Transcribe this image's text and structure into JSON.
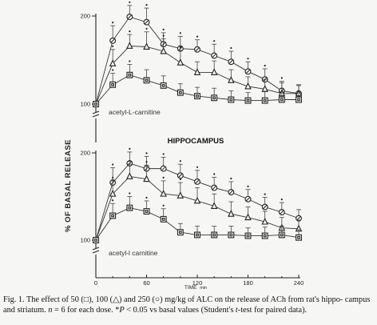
{
  "chart_data": [
    {
      "type": "line",
      "title": "",
      "annotation": "acetyl-L-carnitine",
      "x": [
        0,
        20,
        40,
        60,
        80,
        100,
        120,
        140,
        160,
        180,
        200,
        220,
        240
      ],
      "ylim": [
        95,
        200
      ],
      "series": [
        {
          "marker": "circle",
          "values": [
            100,
            172,
            199,
            193,
            168,
            163,
            162,
            155,
            148,
            137,
            128,
            115,
            112
          ],
          "errors": [
            0,
            17,
            13,
            16,
            13,
            14,
            11,
            13,
            12,
            11,
            12,
            11,
            10
          ],
          "significant": [
            false,
            true,
            true,
            true,
            true,
            true,
            true,
            true,
            true,
            true,
            true,
            true,
            false
          ]
        },
        {
          "marker": "triangle",
          "values": [
            100,
            146,
            166,
            165,
            160,
            147,
            136,
            136,
            127,
            120,
            117,
            112,
            112
          ],
          "errors": [
            0,
            16,
            13,
            17,
            14,
            14,
            12,
            13,
            12,
            11,
            11,
            12,
            9
          ],
          "significant": [
            false,
            true,
            true,
            true,
            true,
            true,
            false,
            false,
            false,
            false,
            false,
            false,
            false
          ]
        },
        {
          "marker": "square",
          "values": [
            100,
            122,
            133,
            127,
            121,
            113,
            109,
            107,
            105,
            104,
            104,
            105,
            105
          ],
          "errors": [
            0,
            13,
            12,
            12,
            11,
            10,
            10,
            11,
            10,
            9,
            10,
            9,
            9
          ],
          "significant": [
            false,
            true,
            true,
            false,
            false,
            false,
            false,
            false,
            false,
            false,
            false,
            false,
            false
          ]
        }
      ]
    },
    {
      "type": "line",
      "title": "HIPPOCAMPUS",
      "annotation": "acetyl-l carnitine",
      "x": [
        0,
        20,
        40,
        60,
        80,
        100,
        120,
        140,
        160,
        180,
        200,
        220,
        240
      ],
      "ylim": [
        95,
        200
      ],
      "series": [
        {
          "marker": "circle",
          "values": [
            100,
            166,
            188,
            182,
            182,
            174,
            167,
            160,
            155,
            147,
            138,
            132,
            125
          ],
          "errors": [
            0,
            17,
            13,
            14,
            13,
            13,
            13,
            12,
            12,
            11,
            11,
            11,
            10
          ],
          "significant": [
            false,
            true,
            true,
            true,
            true,
            true,
            true,
            true,
            true,
            true,
            true,
            true,
            false
          ]
        },
        {
          "marker": "triangle",
          "values": [
            100,
            153,
            173,
            170,
            153,
            151,
            145,
            139,
            130,
            126,
            121,
            114,
            113
          ],
          "errors": [
            0,
            15,
            14,
            16,
            15,
            15,
            15,
            14,
            14,
            12,
            12,
            12,
            10
          ],
          "significant": [
            false,
            true,
            true,
            true,
            true,
            true,
            false,
            false,
            false,
            false,
            false,
            false,
            false
          ]
        },
        {
          "marker": "square",
          "values": [
            100,
            128,
            137,
            133,
            124,
            109,
            106,
            106,
            106,
            105,
            105,
            106,
            103
          ],
          "errors": [
            0,
            14,
            13,
            12,
            12,
            10,
            10,
            10,
            10,
            9,
            10,
            10,
            9
          ],
          "significant": [
            false,
            true,
            true,
            true,
            true,
            false,
            false,
            false,
            false,
            false,
            false,
            false,
            false
          ]
        }
      ]
    }
  ],
  "y_axis_title": "% OF BASAL RELEASE",
  "x_axis_title": "TIME",
  "x_axis_unit": "min",
  "x_ticks": [
    "0",
    "60",
    "120",
    "180",
    "240"
  ],
  "caption": {
    "part1": "Fig. 1. The effect of 50 (□), 100 (△) and 250 (○) mg/kg of ALC on the release of ACh from rat's hippo-",
    "part2": "campus and striatum.",
    "n": "n",
    "part3": "= 6 for each dose. *",
    "p": "P",
    "part4": "< 0.05 vs basal values (Student's",
    "t": "t",
    "part5": "-test for paired data)."
  }
}
